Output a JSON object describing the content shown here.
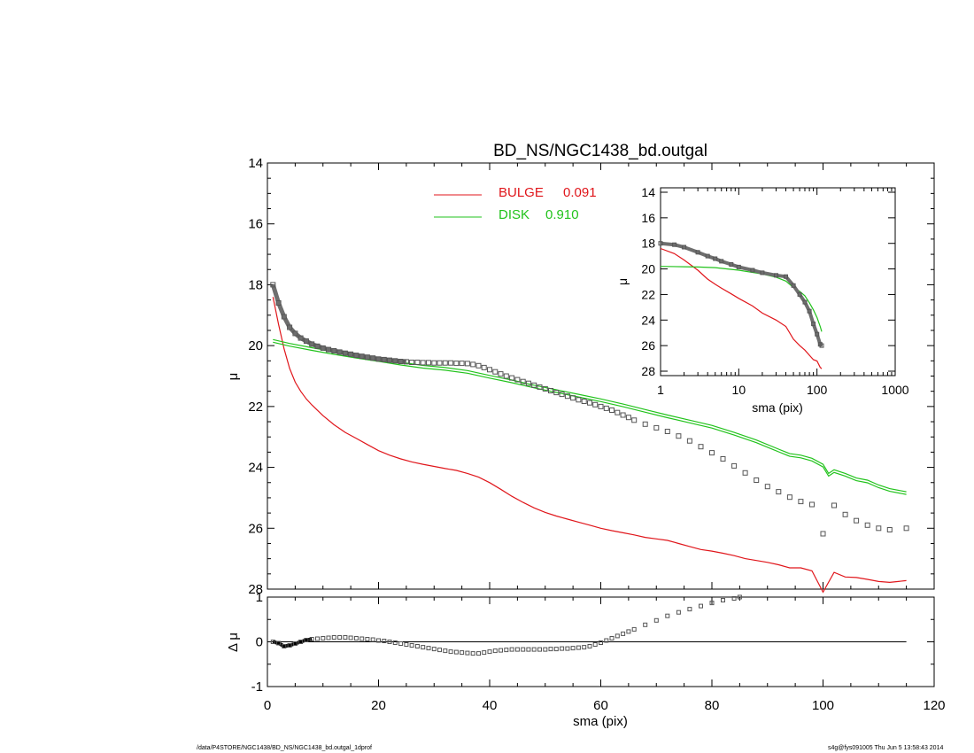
{
  "chart_data": [
    {
      "type": "line",
      "title": "BD_NS/NGC1438_bd.outgal",
      "xlabel": "sma (pix)",
      "ylabel": "μ",
      "xlim": [
        0,
        120
      ],
      "ylim": [
        28,
        14
      ],
      "x_ticks": [
        "0",
        "20",
        "40",
        "60",
        "80",
        "100",
        "120"
      ],
      "y_ticks": [
        "14",
        "16",
        "18",
        "20",
        "22",
        "24",
        "26",
        "28"
      ],
      "legend": {
        "placement": "top-center",
        "entries": [
          {
            "name": "BULGE",
            "value": "0.091",
            "color": "#e0161b"
          },
          {
            "name": "DISK",
            "value": "0.910",
            "color": "#22c31c"
          }
        ]
      },
      "series": [
        {
          "name": "data",
          "marker": "square",
          "color": "#555555",
          "x": [
            1,
            2,
            3,
            4,
            5,
            6,
            7,
            8,
            9,
            10,
            11,
            12,
            13,
            14,
            15,
            16,
            17,
            18,
            19,
            20,
            21,
            22,
            23,
            24,
            25,
            26,
            27,
            28,
            29,
            30,
            31,
            32,
            33,
            34,
            35,
            36,
            37,
            38,
            39,
            40,
            41,
            42,
            43,
            44,
            45,
            46,
            47,
            48,
            49,
            50,
            51,
            52,
            53,
            54,
            55,
            56,
            57,
            58,
            59,
            60,
            61,
            62,
            63,
            64,
            65,
            66,
            68,
            70,
            72,
            74,
            76,
            78,
            80,
            82,
            84,
            86,
            88,
            90,
            92,
            94,
            96,
            98,
            100,
            102,
            104,
            106,
            108,
            110,
            112,
            115
          ],
          "y": [
            18.0,
            18.6,
            19.05,
            19.4,
            19.6,
            19.75,
            19.85,
            19.95,
            20.02,
            20.08,
            20.13,
            20.17,
            20.21,
            20.25,
            20.28,
            20.32,
            20.35,
            20.38,
            20.41,
            20.44,
            20.46,
            20.48,
            20.5,
            20.52,
            20.53,
            20.55,
            20.55,
            20.56,
            20.56,
            20.57,
            20.57,
            20.57,
            20.57,
            20.58,
            20.58,
            20.59,
            20.62,
            20.66,
            20.72,
            20.79,
            20.86,
            20.93,
            21.0,
            21.06,
            21.12,
            21.18,
            21.24,
            21.3,
            21.36,
            21.42,
            21.48,
            21.54,
            21.6,
            21.66,
            21.72,
            21.78,
            21.83,
            21.88,
            21.94,
            22.0,
            22.06,
            22.12,
            22.2,
            22.28,
            22.36,
            22.45,
            22.58,
            22.7,
            22.82,
            22.97,
            23.13,
            23.32,
            23.52,
            23.72,
            23.95,
            24.18,
            24.42,
            24.63,
            24.8,
            24.98,
            25.12,
            25.22,
            26.18,
            25.25,
            25.55,
            25.75,
            25.9,
            26.0,
            26.05,
            26.0
          ]
        },
        {
          "name": "BULGE",
          "color": "#e0161b",
          "x": [
            1,
            2,
            3,
            4,
            5,
            6,
            7,
            8,
            10,
            12,
            14,
            16,
            18,
            20,
            22,
            24,
            26,
            28,
            30,
            32,
            34,
            36,
            38,
            40,
            42,
            44,
            46,
            48,
            50,
            52,
            54,
            56,
            58,
            60,
            62,
            64,
            66,
            68,
            70,
            72,
            74,
            76,
            78,
            80,
            82,
            84,
            86,
            88,
            90,
            92,
            94,
            96,
            98,
            100,
            102,
            104,
            106,
            108,
            110,
            112,
            115
          ],
          "y": [
            18.4,
            19.3,
            20.1,
            20.75,
            21.2,
            21.5,
            21.75,
            21.95,
            22.3,
            22.6,
            22.85,
            23.05,
            23.25,
            23.45,
            23.6,
            23.72,
            23.82,
            23.9,
            23.97,
            24.04,
            24.1,
            24.2,
            24.32,
            24.5,
            24.72,
            24.95,
            25.15,
            25.33,
            25.48,
            25.6,
            25.7,
            25.8,
            25.9,
            26.0,
            26.08,
            26.15,
            26.22,
            26.3,
            26.35,
            26.4,
            26.5,
            26.6,
            26.7,
            26.75,
            26.82,
            26.9,
            27.0,
            27.06,
            27.12,
            27.2,
            27.3,
            27.3,
            27.4,
            28.1,
            27.45,
            27.6,
            27.62,
            27.68,
            27.75,
            27.78,
            27.72
          ]
        },
        {
          "name": "DISK",
          "color": "#22c31c",
          "x": [
            1,
            4,
            8,
            12,
            16,
            20,
            24,
            28,
            32,
            36,
            40,
            44,
            48,
            52,
            56,
            60,
            64,
            68,
            72,
            76,
            80,
            84,
            88,
            92,
            94,
            96,
            98,
            100,
            101,
            102,
            104,
            106,
            108,
            110,
            112,
            115
          ],
          "y": [
            19.8,
            19.93,
            20.07,
            20.2,
            20.32,
            20.43,
            20.55,
            20.65,
            20.72,
            20.82,
            20.98,
            21.13,
            21.3,
            21.45,
            21.6,
            21.75,
            21.92,
            22.1,
            22.28,
            22.45,
            22.62,
            22.85,
            23.1,
            23.4,
            23.55,
            23.6,
            23.7,
            23.9,
            24.2,
            24.08,
            24.2,
            24.35,
            24.42,
            24.58,
            24.7,
            24.8
          ]
        }
      ]
    },
    {
      "type": "scatter",
      "title": "",
      "xlabel": "sma (pix)",
      "ylabel": "Δ μ",
      "xlim": [
        0,
        120
      ],
      "ylim": [
        -1,
        1
      ],
      "x_ticks": [
        "0",
        "20",
        "40",
        "60",
        "80",
        "100",
        "120"
      ],
      "y_ticks": [
        "1",
        "0",
        "-1"
      ],
      "zero_line": true,
      "series": [
        {
          "name": "residual",
          "marker": "square",
          "color": "#555555",
          "x": [
            1,
            2,
            3,
            4,
            5,
            6,
            7,
            8,
            9,
            10,
            11,
            12,
            13,
            14,
            15,
            16,
            17,
            18,
            19,
            20,
            21,
            22,
            23,
            24,
            25,
            26,
            27,
            28,
            29,
            30,
            31,
            32,
            33,
            34,
            35,
            36,
            37,
            38,
            39,
            40,
            41,
            42,
            43,
            44,
            45,
            46,
            47,
            48,
            49,
            50,
            51,
            52,
            53,
            54,
            55,
            56,
            57,
            58,
            59,
            60,
            61,
            62,
            63,
            64,
            65,
            66,
            68,
            70,
            72,
            74,
            76,
            78,
            80,
            82,
            84,
            85
          ],
          "y": [
            0.0,
            -0.03,
            -0.1,
            -0.08,
            -0.04,
            0.0,
            0.04,
            0.06,
            0.07,
            0.08,
            0.09,
            0.1,
            0.1,
            0.1,
            0.09,
            0.08,
            0.07,
            0.06,
            0.05,
            0.03,
            0.02,
            0.0,
            -0.02,
            -0.04,
            -0.06,
            -0.08,
            -0.1,
            -0.12,
            -0.14,
            -0.16,
            -0.18,
            -0.2,
            -0.22,
            -0.23,
            -0.24,
            -0.25,
            -0.26,
            -0.26,
            -0.24,
            -0.22,
            -0.2,
            -0.19,
            -0.18,
            -0.17,
            -0.17,
            -0.17,
            -0.17,
            -0.17,
            -0.17,
            -0.17,
            -0.16,
            -0.16,
            -0.15,
            -0.15,
            -0.14,
            -0.13,
            -0.12,
            -0.1,
            -0.06,
            -0.02,
            0.03,
            0.08,
            0.13,
            0.18,
            0.23,
            0.28,
            0.38,
            0.48,
            0.58,
            0.66,
            0.73,
            0.8,
            0.87,
            0.93,
            0.97,
            1.0
          ]
        }
      ]
    },
    {
      "type": "line",
      "title": "",
      "xlabel": "sma (pix)",
      "ylabel": "μ",
      "xscale": "log",
      "xlim": [
        1,
        1000
      ],
      "ylim": [
        28,
        14
      ],
      "x_ticks": [
        "1",
        "10",
        "100",
        "1000"
      ],
      "y_ticks": [
        "14",
        "16",
        "18",
        "20",
        "22",
        "24",
        "26",
        "28"
      ],
      "series": [
        {
          "name": "data",
          "marker": "square",
          "color": "#555555",
          "x": [
            1,
            1.5,
            2,
            3,
            4,
            5,
            6,
            8,
            10,
            15,
            20,
            30,
            40,
            50,
            60,
            70,
            80,
            90,
            100,
            110,
            115
          ],
          "y": [
            18.0,
            18.1,
            18.3,
            18.7,
            19.0,
            19.2,
            19.4,
            19.65,
            19.85,
            20.1,
            20.3,
            20.5,
            20.6,
            21.3,
            22.0,
            22.6,
            23.3,
            24.3,
            25.1,
            25.9,
            26.0
          ]
        },
        {
          "name": "BULGE",
          "color": "#e0161b",
          "x": [
            1,
            1.5,
            2,
            3,
            4,
            5,
            6,
            8,
            10,
            15,
            20,
            30,
            40,
            50,
            60,
            70,
            80,
            90,
            100,
            110,
            115
          ],
          "y": [
            18.4,
            18.8,
            19.3,
            20.1,
            20.8,
            21.2,
            21.5,
            21.95,
            22.3,
            22.9,
            23.45,
            24.0,
            24.5,
            25.5,
            26.0,
            26.35,
            26.75,
            27.1,
            27.2,
            27.7,
            27.8
          ]
        },
        {
          "name": "DISK",
          "color": "#22c31c",
          "x": [
            1,
            2,
            3,
            5,
            10,
            20,
            30,
            40,
            50,
            60,
            70,
            80,
            90,
            100,
            110,
            115
          ],
          "y": [
            19.8,
            19.83,
            19.85,
            19.9,
            20.1,
            20.4,
            20.65,
            20.95,
            21.45,
            21.75,
            22.1,
            22.65,
            23.2,
            23.8,
            24.5,
            24.9
          ]
        }
      ]
    }
  ],
  "footer": {
    "left": "/data/P4STORE/NGC1438/BD_NS/NGC1438_bd.outgal_1dprof",
    "right": "s4g@fys091005  Thu Jun  5 13:58:43 2014"
  }
}
